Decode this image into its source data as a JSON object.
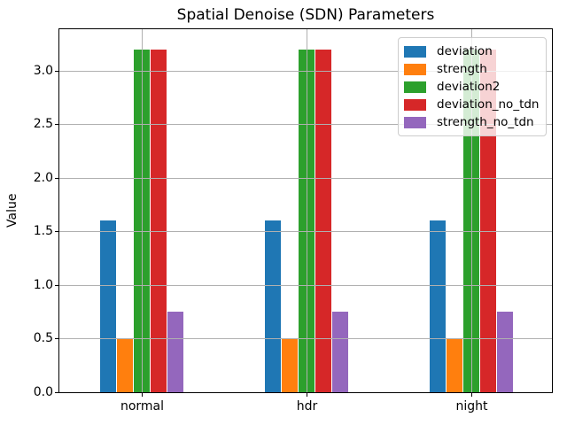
{
  "chart_data": {
    "type": "bar",
    "title": "Spatial Denoise (SDN) Parameters",
    "xlabel": "",
    "ylabel": "Value",
    "categories": [
      "normal",
      "hdr",
      "night"
    ],
    "series": [
      {
        "name": "deviation",
        "color": "#1f77b4",
        "values": [
          1.6,
          1.6,
          1.6
        ]
      },
      {
        "name": "strength",
        "color": "#ff7f0e",
        "values": [
          0.5,
          0.5,
          0.5
        ]
      },
      {
        "name": "deviation2",
        "color": "#2ca02c",
        "values": [
          3.2,
          3.2,
          3.2
        ]
      },
      {
        "name": "deviation_no_tdn",
        "color": "#d62728",
        "values": [
          3.2,
          3.2,
          3.2
        ]
      },
      {
        "name": "strength_no_tdn",
        "color": "#9467bd",
        "values": [
          0.75,
          0.75,
          0.75
        ]
      }
    ],
    "ylim": [
      0,
      3.39
    ],
    "yticks": [
      0.0,
      0.5,
      1.0,
      1.5,
      2.0,
      2.5,
      3.0
    ],
    "ytick_labels": [
      "0.0",
      "0.5",
      "1.0",
      "1.5",
      "2.0",
      "2.5",
      "3.0"
    ],
    "grid": true,
    "grid_over_bars": true,
    "legend_position": "upper right"
  },
  "colors": {
    "background": "#ffffff",
    "grid": "#b0b0b0",
    "spine": "#000000",
    "legend_border": "#cccccc"
  }
}
